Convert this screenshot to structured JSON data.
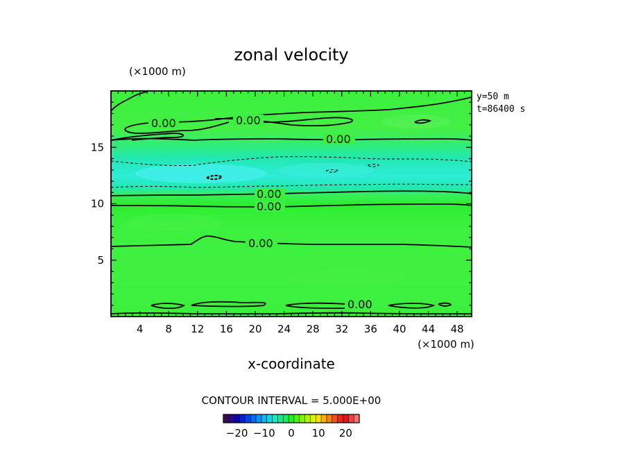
{
  "chart_data": {
    "type": "contour",
    "title": "zonal velocity",
    "xlabel": "x-coordinate",
    "x_unit": "(×1000 m)",
    "y_unit": "(×1000 m)",
    "xlim": [
      0,
      50
    ],
    "ylim": [
      0,
      20
    ],
    "x_ticks": [
      4,
      8,
      12,
      16,
      20,
      24,
      28,
      32,
      36,
      40,
      44,
      48
    ],
    "y_ticks": [
      5,
      10,
      15
    ],
    "info_lines": [
      "y=50 m",
      "t=86400 s"
    ],
    "contour_interval_text": "CONTOUR INTERVAL = 5.000E+00",
    "contour_labels": [
      {
        "text": "0.00",
        "x": 8,
        "y": 17.1
      },
      {
        "text": "0.00",
        "x": 19,
        "y": 17.5
      },
      {
        "text": "0.00",
        "x": 32,
        "y": 15.8
      },
      {
        "text": "0.00",
        "x": 22,
        "y": 10.9
      },
      {
        "text": "0.00",
        "x": 22,
        "y": 9.9
      },
      {
        "text": "0.00",
        "x": 21,
        "y": 6.6
      },
      {
        "text": "0.00",
        "x": 35,
        "y": 1.2
      }
    ],
    "colorbar": {
      "min": -25,
      "max": 25,
      "tick_values": [
        -20,
        -10,
        0,
        10,
        20
      ],
      "tick_labels": [
        "−20",
        "−10",
        "0",
        "10",
        "20"
      ],
      "colors": [
        "#3a0a55",
        "#2a0a80",
        "#0a0aa0",
        "#0a20c8",
        "#0a44e0",
        "#0a6cf0",
        "#0a94f4",
        "#0ab8f4",
        "#0ad8e8",
        "#0af0c0",
        "#0af090",
        "#10f060",
        "#20f020",
        "#50f010",
        "#80f010",
        "#b0f010",
        "#e0f010",
        "#f8e010",
        "#f8b010",
        "#f88010",
        "#f85010",
        "#f82010",
        "#e81010",
        "#f04040",
        "#f87070"
      ]
    },
    "field_colors": {
      "background": "#38ef3a",
      "light_green": "#4ef24f",
      "cyan": "#1fe4b4",
      "light_cyan": "#2fecd8"
    }
  }
}
